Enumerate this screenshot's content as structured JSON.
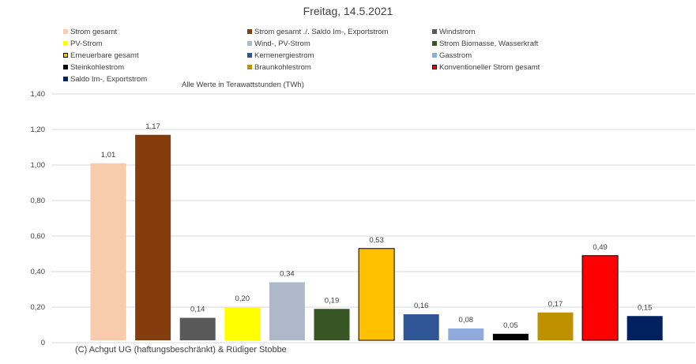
{
  "chart_data": {
    "type": "bar",
    "title": "Freitag, 14.5.2021",
    "subtitle": "Alle Werte in Terawattstunden (TWh)",
    "categories": [
      "Strom gesamt",
      "Strom gesamt ./. Saldo Im-, Exportstrom",
      "Windstrom",
      "PV-Strom",
      "Wind-, PV-Strom",
      "Strom Biomasse, Wasserkraft",
      "Erneuerbare gesamt",
      "Kernenergiestrom",
      "Gasstrom",
      "Steinkohlestrom",
      "Braunkohlestrom",
      "Konventioneller Strom gesamt",
      "Saldo Im-, Exportstrom"
    ],
    "values": [
      1.01,
      1.17,
      0.14,
      0.2,
      0.34,
      0.19,
      0.53,
      0.16,
      0.08,
      0.05,
      0.17,
      0.49,
      0.15
    ],
    "value_labels": [
      "1,01",
      "1,17",
      "0,14",
      "0,20",
      "0,34",
      "0,19",
      "0,53",
      "0,16",
      "0,08",
      "0,05",
      "0,17",
      "0,49",
      "0,15"
    ],
    "colors": [
      "#F8CBAD",
      "#843C0C",
      "#595959",
      "#FFFF00",
      "#ADB9CA",
      "#375623",
      "#FFC000",
      "#2F5597",
      "#8FAADC",
      "#000000",
      "#BF9000",
      "#FF0000",
      "#002060"
    ],
    "outlined": [
      false,
      false,
      false,
      false,
      false,
      false,
      true,
      false,
      false,
      false,
      false,
      true,
      false
    ],
    "ylim": [
      0,
      1.4
    ],
    "yticks": [
      0,
      0.2,
      0.4,
      0.6,
      0.8,
      1.0,
      1.2,
      1.4
    ],
    "ytick_labels": [
      "0",
      "0,20",
      "0,40",
      "0,60",
      "0,80",
      "1,00",
      "1,20",
      "1,40"
    ],
    "grid": true,
    "legend_position": "top",
    "xlabel": "",
    "ylabel": ""
  },
  "footer": "(C) Achgut UG (haftungsbeschränkt) & Rüdiger Stobbe"
}
